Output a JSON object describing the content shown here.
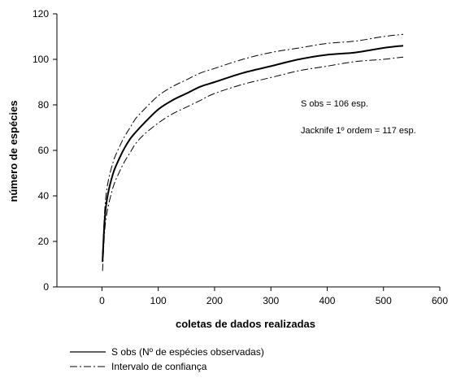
{
  "chart_data": {
    "type": "line",
    "title": "",
    "xlabel": "coletas de dados realizadas",
    "ylabel": "número de espécies",
    "xlim": [
      -80,
      600
    ],
    "ylim": [
      0,
      120
    ],
    "x_ticks": [
      0,
      100,
      200,
      300,
      400,
      500,
      600
    ],
    "y_ticks": [
      0,
      20,
      40,
      60,
      80,
      100,
      120
    ],
    "x_tick_labels": [
      "0",
      "100",
      "200",
      "300",
      "400",
      "500",
      "600"
    ],
    "y_tick_labels": [
      "0",
      "20",
      "40",
      "60",
      "80",
      "100",
      "120"
    ],
    "grid": false,
    "legend_position": "bottom-left",
    "annotations": [
      {
        "text": "S obs = 106 esp."
      },
      {
        "text": "Jacknife 1º ordem = 117 esp."
      }
    ],
    "legend": [
      {
        "label": "S obs (Nº de espécies observadas)",
        "style": "solid"
      },
      {
        "label": "Intervalo de confiança",
        "style": "dash-dot"
      }
    ],
    "x": [
      1,
      5,
      10,
      20,
      30,
      40,
      50,
      60,
      75,
      100,
      125,
      150,
      175,
      200,
      250,
      300,
      350,
      400,
      450,
      500,
      535
    ],
    "series": [
      {
        "role": "main",
        "style": "solid",
        "color": "#000000",
        "values": [
          11,
          30,
          40,
          50,
          56,
          61,
          65,
          68,
          72,
          78,
          82,
          85,
          88,
          90,
          94,
          97,
          100,
          102,
          103,
          105,
          106
        ]
      },
      {
        "role": "upper",
        "style": "dash-dot",
        "color": "#000000",
        "values": [
          14,
          34,
          45,
          55,
          61,
          66,
          70,
          74,
          78,
          84,
          88,
          91,
          94,
          96,
          100,
          103,
          105,
          107,
          108,
          110,
          111
        ]
      },
      {
        "role": "lower",
        "style": "dash-dot",
        "color": "#000000",
        "values": [
          7,
          25,
          34,
          44,
          50,
          55,
          59,
          63,
          67,
          72,
          76,
          79,
          82,
          85,
          89,
          92,
          95,
          97,
          99,
          100,
          101
        ]
      }
    ]
  }
}
